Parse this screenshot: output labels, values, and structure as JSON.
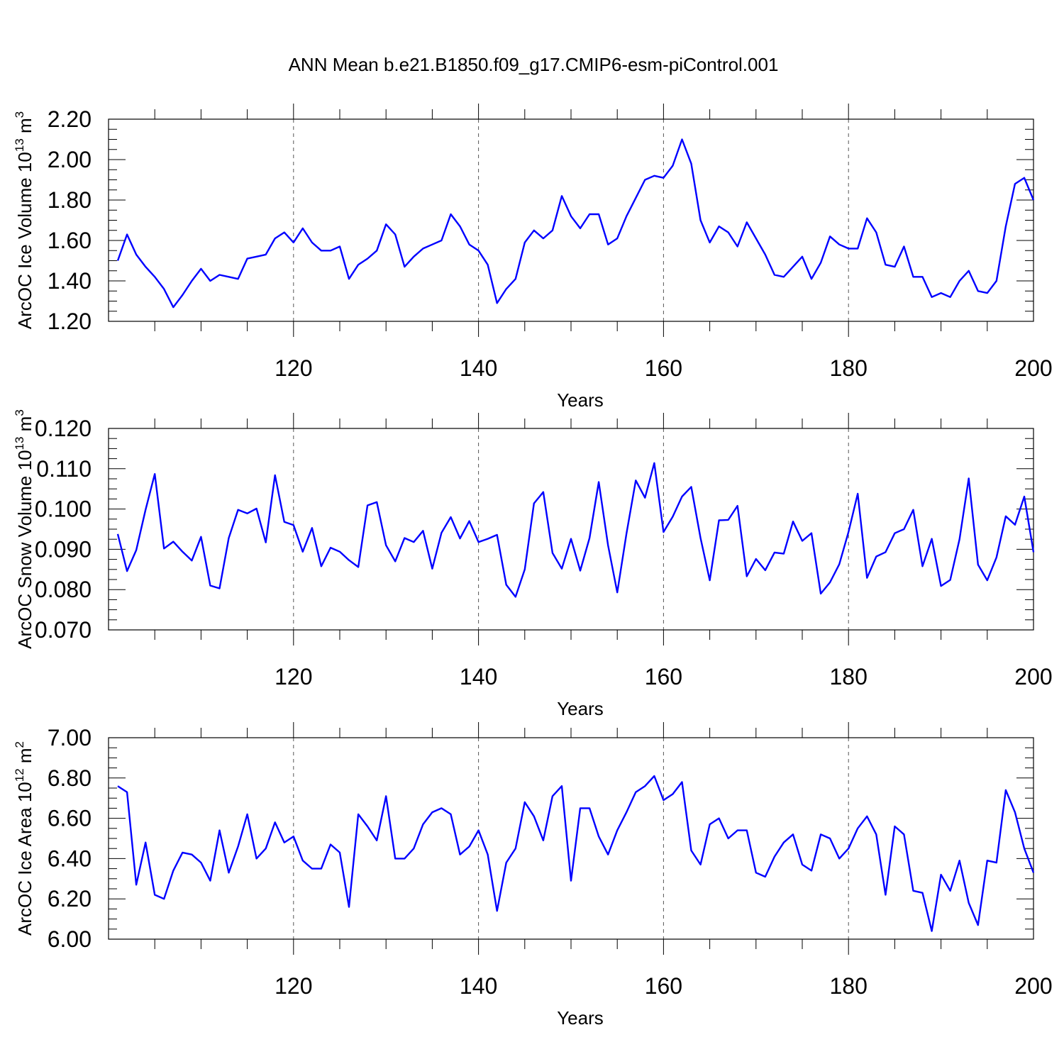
{
  "title": "ANN Mean b.e21.B1850.f09_g17.CMIP6-esm-piControl.001",
  "line_color": "#0000ff",
  "chart_data": [
    {
      "type": "line",
      "ylabel": {
        "main": "ArcOC Ice Volume 10",
        "sup": "13",
        "unit": " m",
        "unit_sup": "3"
      },
      "xlabel": "Years",
      "xlim": [
        100,
        200
      ],
      "ylim": [
        1.2,
        2.2
      ],
      "yticks": [
        "1.20",
        "1.40",
        "1.60",
        "1.80",
        "2.00",
        "2.20"
      ],
      "xticks": [
        "120",
        "140",
        "160",
        "180",
        "200"
      ],
      "x_start": 100,
      "series": [
        {
          "values": [
            1.5,
            1.63,
            1.53,
            1.47,
            1.42,
            1.36,
            1.27,
            1.33,
            1.4,
            1.46,
            1.4,
            1.43,
            1.42,
            1.41,
            1.51,
            1.52,
            1.53,
            1.61,
            1.64,
            1.59,
            1.66,
            1.59,
            1.55,
            1.55,
            1.57,
            1.41,
            1.48,
            1.51,
            1.55,
            1.68,
            1.63,
            1.47,
            1.52,
            1.56,
            1.58,
            1.6,
            1.73,
            1.67,
            1.58,
            1.55,
            1.48,
            1.29,
            1.36,
            1.41,
            1.59,
            1.65,
            1.61,
            1.65,
            1.82,
            1.72,
            1.66,
            1.73,
            1.73,
            1.58,
            1.61,
            1.72,
            1.81,
            1.9,
            1.92,
            1.91,
            1.97,
            2.1,
            1.98,
            1.7,
            1.59,
            1.67,
            1.64,
            1.57,
            1.69,
            1.61,
            1.53,
            1.43,
            1.42,
            1.47,
            1.52,
            1.41,
            1.49,
            1.62,
            1.58,
            1.56,
            1.56,
            1.71,
            1.64,
            1.48,
            1.47,
            1.57,
            1.42,
            1.42,
            1.32,
            1.34,
            1.32,
            1.4,
            1.45,
            1.35,
            1.34,
            1.4,
            1.67,
            1.88,
            1.91,
            1.8
          ]
        }
      ]
    },
    {
      "type": "line",
      "ylabel": {
        "main": "ArcOC Snow Volume 10",
        "sup": "13",
        "unit": " m",
        "unit_sup": "3"
      },
      "xlabel": "Years",
      "xlim": [
        100,
        200
      ],
      "ylim": [
        0.07,
        0.12
      ],
      "yticks": [
        "0.070",
        "0.080",
        "0.090",
        "0.100",
        "0.110",
        "0.120"
      ],
      "xticks": [
        "120",
        "140",
        "160",
        "180",
        "200"
      ],
      "x_start": 100,
      "series": [
        {
          "values": [
            0.0938,
            0.0846,
            0.0898,
            0.0998,
            0.1087,
            0.0902,
            0.0919,
            0.0894,
            0.0872,
            0.0931,
            0.081,
            0.0803,
            0.0928,
            0.0998,
            0.0989,
            0.1001,
            0.0917,
            0.1084,
            0.0968,
            0.096,
            0.0894,
            0.0953,
            0.0858,
            0.0904,
            0.0894,
            0.0873,
            0.0856,
            0.1009,
            0.1017,
            0.091,
            0.087,
            0.0928,
            0.0918,
            0.0946,
            0.0852,
            0.0941,
            0.098,
            0.0927,
            0.097,
            0.0918,
            0.0926,
            0.0936,
            0.0812,
            0.0782,
            0.085,
            0.1014,
            0.1042,
            0.0891,
            0.0852,
            0.0926,
            0.0847,
            0.0928,
            0.1067,
            0.091,
            0.0793,
            0.0939,
            0.1071,
            0.1028,
            0.1114,
            0.0943,
            0.0981,
            0.1031,
            0.1055,
            0.0928,
            0.0823,
            0.0972,
            0.0973,
            0.1008,
            0.0833,
            0.0876,
            0.0848,
            0.0892,
            0.0889,
            0.0969,
            0.0921,
            0.094,
            0.079,
            0.0818,
            0.0863,
            0.0943,
            0.1038,
            0.0829,
            0.0882,
            0.0893,
            0.094,
            0.095,
            0.0998,
            0.0858,
            0.0926,
            0.0809,
            0.0824,
            0.0925,
            0.1076,
            0.0862,
            0.0823,
            0.088,
            0.0982,
            0.0961,
            0.1031,
            0.0893
          ]
        }
      ]
    },
    {
      "type": "line",
      "ylabel": {
        "main": "ArcOC Ice Area 10",
        "sup": "12",
        "unit": " m",
        "unit_sup": "2"
      },
      "xlabel": "Years",
      "xlim": [
        100,
        200
      ],
      "ylim": [
        6.0,
        7.0
      ],
      "yticks": [
        "6.00",
        "6.20",
        "6.40",
        "6.60",
        "6.80",
        "7.00"
      ],
      "xticks": [
        "120",
        "140",
        "160",
        "180",
        "200"
      ],
      "x_start": 100,
      "series": [
        {
          "values": [
            6.76,
            6.73,
            6.27,
            6.48,
            6.22,
            6.2,
            6.34,
            6.43,
            6.42,
            6.38,
            6.29,
            6.54,
            6.33,
            6.46,
            6.62,
            6.4,
            6.45,
            6.58,
            6.48,
            6.51,
            6.39,
            6.35,
            6.35,
            6.47,
            6.43,
            6.16,
            6.62,
            6.56,
            6.49,
            6.71,
            6.4,
            6.4,
            6.45,
            6.57,
            6.63,
            6.65,
            6.62,
            6.42,
            6.46,
            6.54,
            6.42,
            6.14,
            6.38,
            6.45,
            6.68,
            6.61,
            6.49,
            6.71,
            6.76,
            6.29,
            6.65,
            6.65,
            6.51,
            6.42,
            6.54,
            6.63,
            6.73,
            6.76,
            6.81,
            6.69,
            6.72,
            6.78,
            6.44,
            6.37,
            6.57,
            6.6,
            6.5,
            6.54,
            6.54,
            6.33,
            6.31,
            6.41,
            6.48,
            6.52,
            6.37,
            6.34,
            6.52,
            6.5,
            6.4,
            6.45,
            6.55,
            6.61,
            6.52,
            6.22,
            6.56,
            6.52,
            6.24,
            6.23,
            6.04,
            6.32,
            6.24,
            6.39,
            6.18,
            6.07,
            6.39,
            6.38,
            6.74,
            6.63,
            6.45,
            6.33
          ]
        }
      ]
    }
  ]
}
